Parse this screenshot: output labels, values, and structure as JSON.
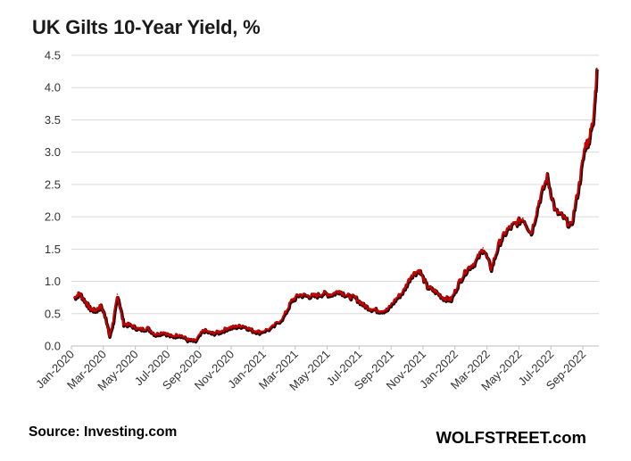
{
  "header": {
    "title": "UK Gilts 10-Year Yield, %"
  },
  "footer": {
    "source": "Source: Investing.com",
    "brand": "WOLFSTREET.com"
  },
  "chart_data": {
    "type": "line",
    "title": "UK Gilts 10-Year Yield, %",
    "xlabel": "",
    "ylabel": "",
    "ylim": [
      0,
      4.5
    ],
    "yticks": [
      0.0,
      0.5,
      1.0,
      1.5,
      2.0,
      2.5,
      3.0,
      3.5,
      4.0,
      4.5
    ],
    "ytick_labels": [
      "0.0",
      "0.5",
      "1.0",
      "1.5",
      "2.0",
      "2.5",
      "3.0",
      "3.5",
      "4.0",
      "4.5"
    ],
    "xticks": [
      "2020-01",
      "2020-03",
      "2020-05",
      "2020-07",
      "2020-09",
      "2020-11",
      "2021-01",
      "2021-03",
      "2021-05",
      "2021-07",
      "2021-09",
      "2021-11",
      "2022-01",
      "2022-03",
      "2022-05",
      "2022-07",
      "2022-09"
    ],
    "xtick_labels": [
      "Jan-2020",
      "Mar-2020",
      "May-2020",
      "Jul-2020",
      "Sep-2020",
      "Nov-2020",
      "Jan-2021",
      "Mar-2021",
      "May-2021",
      "Jul-2021",
      "Sep-2021",
      "Nov-2021",
      "Jan-2022",
      "Mar-2022",
      "May-2022",
      "Jul-2022",
      "Sep-2022"
    ],
    "xlim": [
      "2020-01",
      "2022-10"
    ],
    "grid": "horizontal",
    "colors": {
      "line": "#cc0000",
      "shadow": "#2a0000",
      "grid": "#d9d9d9"
    },
    "series": [
      {
        "points": [
          [
            "2020-01",
            0.75
          ],
          [
            "2020-01",
            0.82
          ],
          [
            "2020-01",
            0.7
          ],
          [
            "2020-02",
            0.58
          ],
          [
            "2020-02",
            0.55
          ],
          [
            "2020-02",
            0.62
          ],
          [
            "2020-03",
            0.45
          ],
          [
            "2020-03",
            0.15
          ],
          [
            "2020-03",
            0.4
          ],
          [
            "2020-03",
            0.8
          ],
          [
            "2020-04",
            0.35
          ],
          [
            "2020-04",
            0.32
          ],
          [
            "2020-05",
            0.26
          ],
          [
            "2020-05",
            0.28
          ],
          [
            "2020-06",
            0.18
          ],
          [
            "2020-06",
            0.22
          ],
          [
            "2020-07",
            0.15
          ],
          [
            "2020-07",
            0.18
          ],
          [
            "2020-08",
            0.1
          ],
          [
            "2020-08",
            0.08
          ],
          [
            "2020-09",
            0.25
          ],
          [
            "2020-09",
            0.2
          ],
          [
            "2020-10",
            0.22
          ],
          [
            "2020-10",
            0.28
          ],
          [
            "2020-11",
            0.3
          ],
          [
            "2020-11",
            0.32
          ],
          [
            "2020-12",
            0.25
          ],
          [
            "2020-12",
            0.22
          ],
          [
            "2021-01",
            0.28
          ],
          [
            "2021-02",
            0.45
          ],
          [
            "2021-02",
            0.7
          ],
          [
            "2021-03",
            0.8
          ],
          [
            "2021-03",
            0.78
          ],
          [
            "2021-04",
            0.78
          ],
          [
            "2021-04",
            0.82
          ],
          [
            "2021-05",
            0.8
          ],
          [
            "2021-05",
            0.86
          ],
          [
            "2021-06",
            0.78
          ],
          [
            "2021-06",
            0.75
          ],
          [
            "2021-07",
            0.64
          ],
          [
            "2021-07",
            0.58
          ],
          [
            "2021-08",
            0.55
          ],
          [
            "2021-08",
            0.56
          ],
          [
            "2021-09",
            0.72
          ],
          [
            "2021-09",
            0.85
          ],
          [
            "2021-10",
            1.1
          ],
          [
            "2021-10",
            1.18
          ],
          [
            "2021-11",
            0.92
          ],
          [
            "2021-11",
            0.85
          ],
          [
            "2021-12",
            0.75
          ],
          [
            "2021-12",
            0.72
          ],
          [
            "2022-01",
            1.0
          ],
          [
            "2022-01",
            1.2
          ],
          [
            "2022-02",
            1.3
          ],
          [
            "2022-02",
            1.52
          ],
          [
            "2022-03",
            1.2
          ],
          [
            "2022-03",
            1.6
          ],
          [
            "2022-04",
            1.8
          ],
          [
            "2022-04",
            1.9
          ],
          [
            "2022-05",
            1.98
          ],
          [
            "2022-05",
            1.75
          ],
          [
            "2022-06",
            2.25
          ],
          [
            "2022-06",
            2.62
          ],
          [
            "2022-07",
            2.1
          ],
          [
            "2022-07",
            2.0
          ],
          [
            "2022-08",
            1.85
          ],
          [
            "2022-08",
            2.5
          ],
          [
            "2022-09",
            3.1
          ],
          [
            "2022-09",
            3.2
          ],
          [
            "2022-09",
            3.5
          ],
          [
            "2022-09",
            4.3
          ]
        ]
      }
    ]
  }
}
